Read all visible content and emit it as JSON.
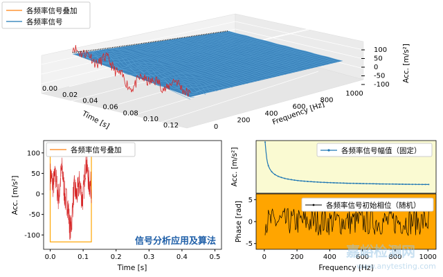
{
  "chart_data": [
    {
      "type": "line",
      "name": "3d-spectrum-surface",
      "legend": [
        "各频率信号叠加",
        "各频率信号"
      ],
      "xlabel": "Time [s]",
      "ylabel": "Frequency [Hz]",
      "zlabel": "Acc. [m/s²]",
      "x_ticks": [
        "0.00",
        "0.02",
        "0.04",
        "0.06",
        "0.08",
        "0.10",
        "0.12"
      ],
      "y_ticks": [
        "0",
        "200",
        "400",
        "600",
        "800",
        "1000"
      ],
      "z_ticks": [
        "100",
        "50",
        "0",
        "-50",
        "-100"
      ],
      "xlim": [
        0,
        0.125
      ],
      "ylim": [
        0,
        1000
      ],
      "zlim": [
        -120,
        120
      ]
    },
    {
      "type": "line",
      "name": "time-signal",
      "legend": [
        "各频率信号叠加"
      ],
      "xlabel": "Time [s]",
      "ylabel": "Acc. [m/s²]",
      "x_ticks": [
        "0.0",
        "0.1",
        "0.2",
        "0.3",
        "0.4",
        "0.5"
      ],
      "y_ticks": [
        "100",
        "50",
        "0",
        "-50",
        "-100"
      ],
      "xlim": [
        -0.02,
        0.52
      ],
      "ylim": [
        -135,
        130
      ],
      "rect": {
        "x": [
          0,
          0.125
        ],
        "y": [
          -117,
          100
        ]
      },
      "annotation": "信号分析应用及算法"
    },
    {
      "type": "line",
      "name": "amplitude-spectrum",
      "legend": [
        "各频率信号幅值（固定）"
      ],
      "ylabel": "Acc. [m/s²]",
      "xlim": [
        -50,
        1050
      ],
      "ylim": [
        0,
        18
      ],
      "start_value": 20,
      "end_value": 2.0
    },
    {
      "type": "line",
      "name": "phase-spectrum",
      "legend": [
        "各频率信号初始相位（随机）"
      ],
      "xlabel": "Frequency [Hz]",
      "ylabel": "Phase [rad]",
      "x_ticks": [
        "0",
        "200",
        "400",
        "600",
        "800",
        "1000"
      ],
      "y_ticks": [
        "5",
        "0",
        "-5"
      ],
      "xlim": [
        -50,
        1050
      ],
      "ylim": [
        -6.3,
        6.3
      ]
    }
  ],
  "watermark": {
    "text1": "嘉峪检测网",
    "text2": "www.anytesting.com"
  }
}
